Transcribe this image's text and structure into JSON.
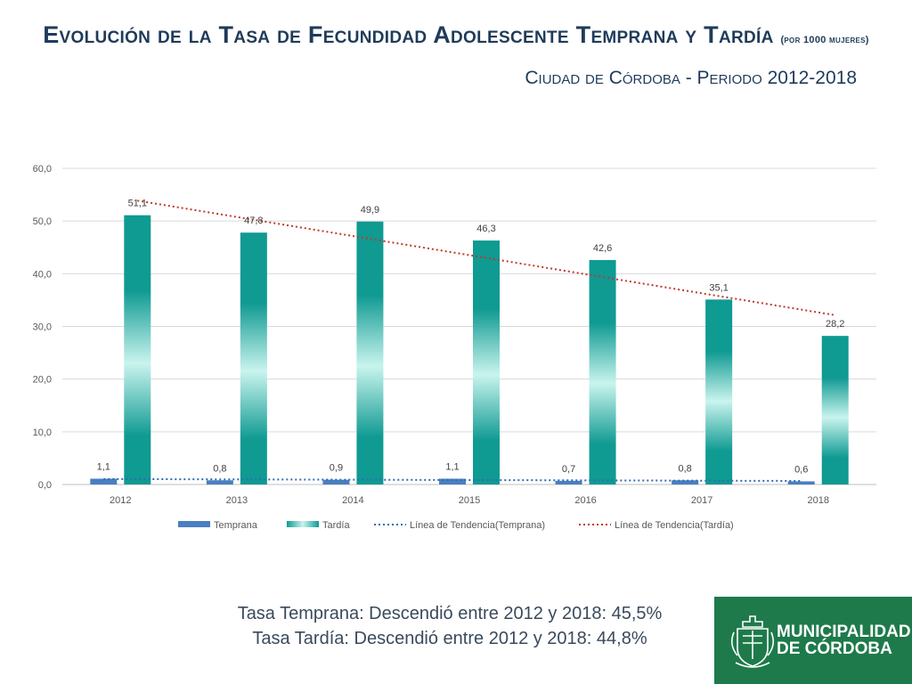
{
  "header": {
    "title": "Evolución de la Tasa de Fecundidad Adolescente Temprana y Tardía",
    "title_unit": "(por 1000 mujeres)",
    "subtitle": "Ciudad de Córdoba - Periodo 2012-2018"
  },
  "chart_data": {
    "type": "bar",
    "categories": [
      "2012",
      "2013",
      "2014",
      "2015",
      "2016",
      "2017",
      "2018"
    ],
    "series": [
      {
        "name": "Temprana",
        "values": [
          1.1,
          0.8,
          0.9,
          1.1,
          0.7,
          0.8,
          0.6
        ],
        "color": "#4a7fc1"
      },
      {
        "name": "Tardía",
        "values": [
          51.1,
          47.8,
          49.9,
          46.3,
          42.6,
          35.1,
          28.2
        ],
        "color": "#14a39a"
      }
    ],
    "data_labels": {
      "Temprana": [
        "1,1",
        "0,8",
        "0,9",
        "1,1",
        "0,7",
        "0,8",
        "0,6"
      ],
      "Tardía": [
        "51,1",
        "47,8",
        "49,9",
        "46,3",
        "42,6",
        "35,1",
        "28,2"
      ]
    },
    "trendlines": [
      {
        "name": "Línea de Tendencia(Temprana)",
        "color": "#2e6db4",
        "style": "dotted"
      },
      {
        "name": "Línea de Tendencia(Tardía)",
        "color": "#c0392b",
        "style": "dotted"
      }
    ],
    "ylim": [
      0,
      60
    ],
    "yticks": [
      0,
      10,
      20,
      30,
      40,
      50,
      60
    ],
    "ytick_labels": [
      "0,0",
      "10,0",
      "20,0",
      "30,0",
      "40,0",
      "50,0",
      "60,0"
    ],
    "grid": true,
    "legend_position": "bottom"
  },
  "summary": {
    "line1": "Tasa Temprana: Descendió entre 2012 y 2018: 45,5%",
    "line2": "Tasa Tardía: Descendió entre 2012 y 2018: 44,8%"
  },
  "logo": {
    "line1": "MUNICIPALIDAD",
    "line2": "DE CÓRDOBA",
    "color": "#1e7a4a"
  }
}
